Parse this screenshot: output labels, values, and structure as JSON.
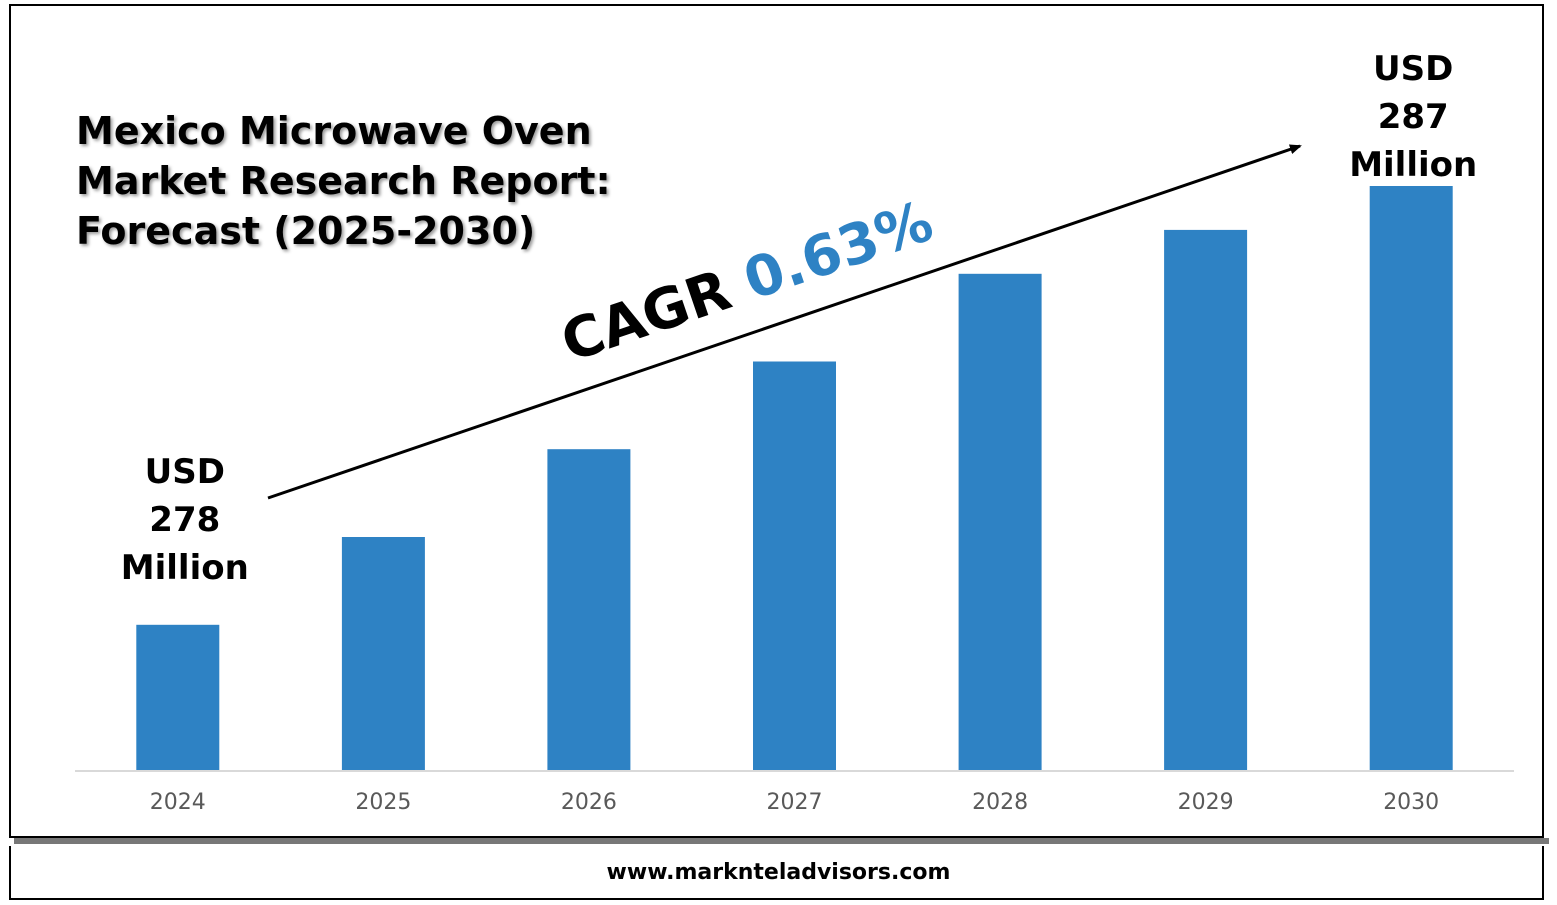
{
  "title": "Mexico Microwave Oven Market Research Report: Forecast (2025-2030)",
  "footer": "www.marknteladvisors.com",
  "colors": {
    "bar": "#2e82c4",
    "cagr": "#2e82c4",
    "axis": "#d9d9d9"
  },
  "chart_data": {
    "type": "bar",
    "categories": [
      "2024",
      "2025",
      "2026",
      "2027",
      "2028",
      "2029",
      "2030"
    ],
    "values": [
      278,
      279.8,
      281.6,
      283.4,
      285.2,
      286.1,
      287
    ],
    "ylim": [
      275,
      288
    ],
    "grid": false,
    "annotations": {
      "start": [
        "USD",
        "278",
        "Million"
      ],
      "end": [
        "USD",
        "287",
        "Million"
      ],
      "cagr_label": "CAGR",
      "cagr_value": "0.63%"
    }
  }
}
